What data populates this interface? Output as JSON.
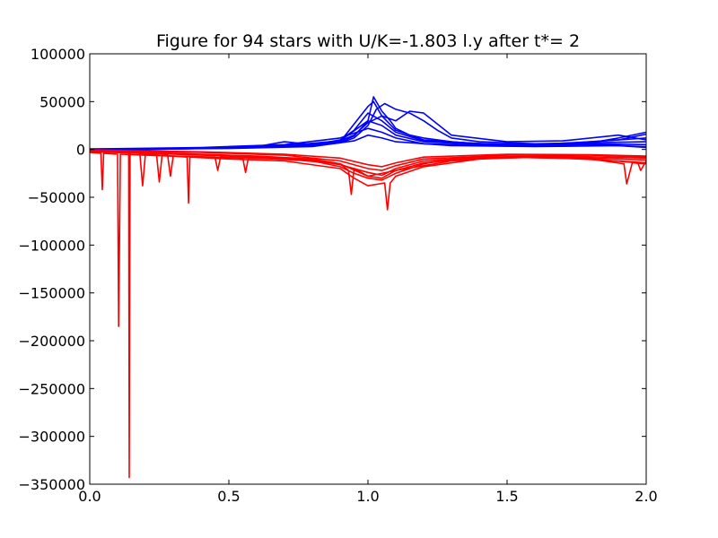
{
  "chart_data": {
    "type": "line",
    "title": "Figure for 94 stars with U/K=-1.803 l.y after t*= 2",
    "xlabel": "",
    "ylabel": "",
    "xlim": [
      0.0,
      2.0
    ],
    "ylim": [
      -350000,
      100000
    ],
    "grid": false,
    "legend": "none",
    "x_ticks": [
      0.0,
      0.5,
      1.0,
      1.5,
      2.0
    ],
    "x_tick_labels": [
      "0.0",
      "0.5",
      "1.0",
      "1.5",
      "2.0"
    ],
    "y_ticks": [
      100000,
      50000,
      0,
      -50000,
      -100000,
      -150000,
      -200000,
      -250000,
      -300000,
      -350000
    ],
    "y_tick_labels": [
      "100000",
      "50000",
      "0",
      "−50000",
      "−100000",
      "−150000",
      "−200000",
      "−250000",
      "−300000",
      "−350000"
    ],
    "series": [
      {
        "color": "#0000ff",
        "curves": [
          {
            "x": [
              0.0,
              0.1,
              0.2,
              0.3,
              0.4,
              0.5,
              0.6,
              0.7,
              0.8,
              0.9,
              0.95,
              1.0,
              1.02,
              1.05,
              1.08,
              1.1,
              1.15,
              1.2,
              1.3,
              1.4,
              1.5,
              1.6,
              1.7,
              1.8,
              1.9,
              1.95,
              2.0
            ],
            "y": [
              0,
              500,
              800,
              1000,
              1500,
              2000,
              3000,
              4000,
              5000,
              8000,
              14000,
              30000,
              55000,
              40000,
              30000,
              22000,
              15000,
              12000,
              8000,
              6000,
              5000,
              5000,
              6000,
              8000,
              10000,
              13000,
              16000
            ]
          },
          {
            "x": [
              0.0,
              0.2,
              0.4,
              0.6,
              0.8,
              0.9,
              0.95,
              1.0,
              1.03,
              1.06,
              1.1,
              1.15,
              1.2,
              1.25,
              1.3,
              1.4,
              1.6,
              1.8,
              1.9,
              2.0
            ],
            "y": [
              -1000,
              0,
              1000,
              2000,
              4000,
              7000,
              12000,
              25000,
              42000,
              48000,
              42000,
              38000,
              30000,
              20000,
              12000,
              8000,
              6000,
              7000,
              12000,
              18000
            ]
          },
          {
            "x": [
              0.0,
              0.2,
              0.4,
              0.6,
              0.7,
              0.8,
              0.9,
              0.95,
              1.0,
              1.05,
              1.1,
              1.15,
              1.2,
              1.3,
              1.5,
              1.7,
              1.9,
              2.0
            ],
            "y": [
              -2000,
              0,
              1000,
              3000,
              8000,
              5000,
              9000,
              15000,
              28000,
              35000,
              30000,
              40000,
              38000,
              15000,
              8000,
              9000,
              15000,
              10000
            ]
          },
          {
            "x": [
              0.0,
              0.3,
              0.6,
              0.8,
              0.9,
              1.0,
              1.02,
              1.05,
              1.1,
              1.2,
              1.4,
              1.6,
              1.8,
              2.0
            ],
            "y": [
              0,
              1000,
              2000,
              4000,
              8000,
              45000,
              50000,
              35000,
              20000,
              10000,
              6000,
              5000,
              8000,
              12000
            ]
          },
          {
            "x": [
              0.0,
              0.3,
              0.6,
              0.8,
              0.9,
              0.95,
              1.0,
              1.05,
              1.1,
              1.2,
              1.5,
              1.8,
              2.0
            ],
            "y": [
              -1000,
              1000,
              3000,
              5000,
              10000,
              20000,
              38000,
              30000,
              18000,
              9000,
              5000,
              7000,
              8000
            ]
          },
          {
            "x": [
              0.0,
              0.4,
              0.7,
              0.9,
              1.0,
              1.05,
              1.1,
              1.2,
              1.5,
              1.8,
              2.0
            ],
            "y": [
              0,
              1500,
              4000,
              9000,
              30000,
              25000,
              15000,
              8000,
              4000,
              6000,
              5000
            ]
          },
          {
            "x": [
              0.0,
              0.4,
              0.7,
              0.9,
              1.0,
              1.05,
              1.1,
              1.2,
              1.5,
              1.8,
              2.0
            ],
            "y": [
              500,
              2000,
              5000,
              12000,
              22000,
              18000,
              12000,
              6000,
              3500,
              5000,
              3000
            ]
          },
          {
            "x": [
              0.0,
              0.5,
              0.8,
              0.95,
              1.0,
              1.05,
              1.1,
              1.3,
              1.6,
              1.9,
              2.0
            ],
            "y": [
              0,
              1000,
              3000,
              9000,
              15000,
              12000,
              8000,
              4000,
              3000,
              4000,
              2000
            ]
          }
        ]
      },
      {
        "color": "#ff0000",
        "curves": [
          {
            "x": [
              0.0,
              0.04,
              0.045,
              0.05,
              0.1,
              0.104,
              0.11,
              0.2,
              0.4,
              0.6,
              0.8,
              0.9,
              0.95,
              1.0,
              1.05,
              1.1,
              1.2,
              1.3,
              1.5,
              1.7,
              1.9,
              2.0
            ],
            "y": [
              -3000,
              -4000,
              -42000,
              -4000,
              -5000,
              -185000,
              -5000,
              -6000,
              -8000,
              -9000,
              -12000,
              -18000,
              -25000,
              -30000,
              -32000,
              -25000,
              -15000,
              -10000,
              -8000,
              -9000,
              -12000,
              -14000
            ]
          },
          {
            "x": [
              0.0,
              0.14,
              0.142,
              0.145,
              0.2,
              0.3,
              0.35,
              0.355,
              0.36,
              0.5,
              0.7,
              0.9,
              0.95,
              1.0,
              1.06,
              1.07,
              1.08,
              1.1,
              1.2,
              1.4,
              1.6,
              1.8,
              1.92,
              1.93,
              1.95,
              2.0
            ],
            "y": [
              -2000,
              -3000,
              -343000,
              -3000,
              -5000,
              -7000,
              -8000,
              -56000,
              -8000,
              -10000,
              -12000,
              -20000,
              -30000,
              -38000,
              -35000,
              -63000,
              -35000,
              -28000,
              -18000,
              -10000,
              -8000,
              -10000,
              -15000,
              -36000,
              -14000,
              -15000
            ]
          },
          {
            "x": [
              0.0,
              0.18,
              0.19,
              0.2,
              0.24,
              0.25,
              0.26,
              0.28,
              0.29,
              0.3,
              0.45,
              0.46,
              0.47,
              0.55,
              0.56,
              0.57,
              0.7,
              0.9,
              0.93,
              0.94,
              0.95,
              1.0,
              1.1,
              1.3,
              1.5,
              1.8,
              1.97,
              1.98,
              2.0
            ],
            "y": [
              -2500,
              -4000,
              -38000,
              -5000,
              -5000,
              -34000,
              -6000,
              -6000,
              -28000,
              -7000,
              -8000,
              -22000,
              -8000,
              -9000,
              -24000,
              -9000,
              -10000,
              -15000,
              -22000,
              -47000,
              -20000,
              -28000,
              -22000,
              -12000,
              -8000,
              -10000,
              -14000,
              -22000,
              -12000
            ]
          },
          {
            "x": [
              0.0,
              0.3,
              0.6,
              0.8,
              0.9,
              1.0,
              1.05,
              1.1,
              1.2,
              1.4,
              1.7,
              2.0
            ],
            "y": [
              -1500,
              -4000,
              -7000,
              -10000,
              -15000,
              -28000,
              -30000,
              -22000,
              -14000,
              -9000,
              -8000,
              -11000
            ]
          },
          {
            "x": [
              0.0,
              0.3,
              0.6,
              0.8,
              0.9,
              1.0,
              1.05,
              1.1,
              1.2,
              1.4,
              1.7,
              2.0
            ],
            "y": [
              -2000,
              -5000,
              -8000,
              -11000,
              -16000,
              -24000,
              -27000,
              -20000,
              -12000,
              -8000,
              -7000,
              -9000
            ]
          },
          {
            "x": [
              0.0,
              0.4,
              0.7,
              0.9,
              1.0,
              1.05,
              1.1,
              1.2,
              1.5,
              1.8,
              2.0
            ],
            "y": [
              -1000,
              -3000,
              -6000,
              -12000,
              -20000,
              -22000,
              -17000,
              -10000,
              -6000,
              -6000,
              -8000
            ]
          },
          {
            "x": [
              0.0,
              0.4,
              0.7,
              0.9,
              1.0,
              1.05,
              1.1,
              1.2,
              1.5,
              1.8,
              2.0
            ],
            "y": [
              -500,
              -2500,
              -5000,
              -9000,
              -16000,
              -18000,
              -14000,
              -8000,
              -5000,
              -5500,
              -7000
            ]
          }
        ]
      }
    ]
  }
}
